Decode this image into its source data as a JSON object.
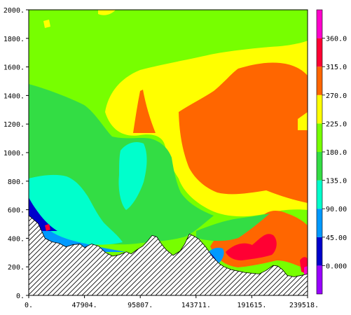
{
  "chart_data": {
    "type": "heatmap",
    "title": "",
    "xlabel": "",
    "ylabel": "",
    "xlim": [
      0,
      239518
    ],
    "ylim": [
      0,
      2000
    ],
    "x_ticks": [
      {
        "value": 0,
        "label": "0."
      },
      {
        "value": 47904,
        "label": "47904."
      },
      {
        "value": 95807,
        "label": "95807."
      },
      {
        "value": 143711,
        "label": "143711."
      },
      {
        "value": 191615,
        "label": "191615."
      },
      {
        "value": 239518,
        "label": "239518."
      }
    ],
    "y_ticks": [
      {
        "value": 0,
        "label": "0."
      },
      {
        "value": 200,
        "label": "200."
      },
      {
        "value": 400,
        "label": "400."
      },
      {
        "value": 600,
        "label": "600."
      },
      {
        "value": 800,
        "label": "800."
      },
      {
        "value": 1000,
        "label": "1000."
      },
      {
        "value": 1200,
        "label": "1200."
      },
      {
        "value": 1400,
        "label": "1400."
      },
      {
        "value": 1600,
        "label": "1600."
      },
      {
        "value": 1800,
        "label": "1800."
      },
      {
        "value": 2000,
        "label": "2000."
      }
    ],
    "colorbar": {
      "range": [
        -45,
        405
      ],
      "levels": [
        {
          "value": 0,
          "label": "0.000"
        },
        {
          "value": 45,
          "label": "45.00"
        },
        {
          "value": 90,
          "label": "90.00"
        },
        {
          "value": 135,
          "label": "135.0"
        },
        {
          "value": 180,
          "label": "180.0"
        },
        {
          "value": 225,
          "label": "225.0"
        },
        {
          "value": 270,
          "label": "270.0"
        },
        {
          "value": 315,
          "label": "315.0"
        },
        {
          "value": 360,
          "label": "360.0"
        }
      ],
      "bands": [
        {
          "from": -45,
          "to": 0,
          "color": "#9900ff"
        },
        {
          "from": 0,
          "to": 45,
          "color": "#0000cc"
        },
        {
          "from": 45,
          "to": 90,
          "color": "#0099ff"
        },
        {
          "from": 90,
          "to": 135,
          "color": "#00ffcc"
        },
        {
          "from": 135,
          "to": 180,
          "color": "#33dd44"
        },
        {
          "from": 180,
          "to": 225,
          "color": "#77ff00"
        },
        {
          "from": 225,
          "to": 270,
          "color": "#ffff00"
        },
        {
          "from": 270,
          "to": 315,
          "color": "#ff6600"
        },
        {
          "from": 315,
          "to": 360,
          "color": "#ff0033"
        },
        {
          "from": 360,
          "to": 405,
          "color": "#ff00cc"
        }
      ]
    },
    "terrain": [
      [
        0,
        560
      ],
      [
        8000,
        505
      ],
      [
        14000,
        400
      ],
      [
        20000,
        375
      ],
      [
        26000,
        365
      ],
      [
        32000,
        340
      ],
      [
        38000,
        355
      ],
      [
        44000,
        360
      ],
      [
        48000,
        335
      ],
      [
        54000,
        360
      ],
      [
        60000,
        345
      ],
      [
        66000,
        300
      ],
      [
        72000,
        275
      ],
      [
        78000,
        285
      ],
      [
        84000,
        305
      ],
      [
        88000,
        290
      ],
      [
        93000,
        320
      ],
      [
        98000,
        345
      ],
      [
        102000,
        380
      ],
      [
        106000,
        420
      ],
      [
        110000,
        410
      ],
      [
        114000,
        360
      ],
      [
        118000,
        320
      ],
      [
        124000,
        280
      ],
      [
        130000,
        310
      ],
      [
        134000,
        360
      ],
      [
        138000,
        430
      ],
      [
        142000,
        415
      ],
      [
        146000,
        395
      ],
      [
        152000,
        340
      ],
      [
        158000,
        270
      ],
      [
        164000,
        220
      ],
      [
        168000,
        200
      ],
      [
        174000,
        180
      ],
      [
        180000,
        170
      ],
      [
        186000,
        160
      ],
      [
        192000,
        155
      ],
      [
        198000,
        150
      ],
      [
        204000,
        175
      ],
      [
        210000,
        210
      ],
      [
        214000,
        205
      ],
      [
        218000,
        180
      ],
      [
        222000,
        140
      ],
      [
        228000,
        130
      ],
      [
        234000,
        140
      ],
      [
        239518,
        150
      ]
    ]
  }
}
